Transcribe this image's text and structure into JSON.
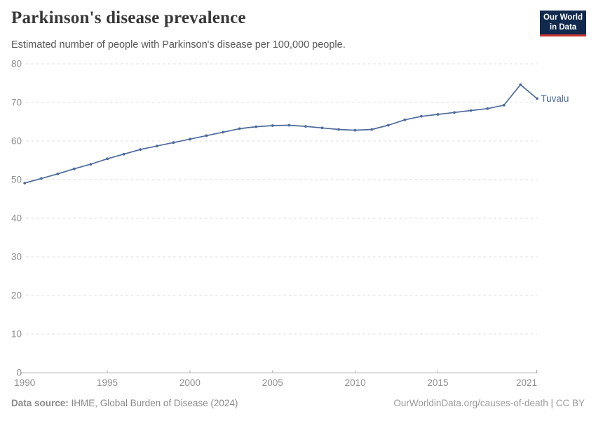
{
  "header": {
    "title": "Parkinson's disease prevalence",
    "subtitle": "Estimated number of people with Parkinson's disease per 100,000 people.",
    "logo": {
      "line1": "Our World",
      "line2": "in Data",
      "bg_color": "#10294C",
      "accent_color": "#C8352C"
    }
  },
  "chart_data": {
    "type": "line",
    "title": "Parkinson's disease prevalence",
    "subtitle": "Estimated number of people with Parkinson's disease per 100,000 people.",
    "x": [
      1990,
      1991,
      1992,
      1993,
      1994,
      1995,
      1996,
      1997,
      1998,
      1999,
      2000,
      2001,
      2002,
      2003,
      2004,
      2005,
      2006,
      2007,
      2008,
      2009,
      2010,
      2011,
      2012,
      2013,
      2014,
      2015,
      2016,
      2017,
      2018,
      2019,
      2020,
      2021
    ],
    "series": [
      {
        "name": "Tuvalu",
        "color": "#4C6A9C",
        "values": [
          49.1,
          50.3,
          51.5,
          52.8,
          54.0,
          55.4,
          56.6,
          57.8,
          58.7,
          59.6,
          60.5,
          61.4,
          62.3,
          63.2,
          63.7,
          64.0,
          64.1,
          63.8,
          63.4,
          63.0,
          62.8,
          63.0,
          64.1,
          65.5,
          66.4,
          66.9,
          67.4,
          67.9,
          68.4,
          69.3,
          74.6,
          71.0
        ]
      }
    ],
    "xlim": [
      1990,
      2021
    ],
    "ylim": [
      0,
      80
    ],
    "xticks": [
      1990,
      1995,
      2000,
      2005,
      2010,
      2015,
      2021
    ],
    "yticks": [
      0,
      10,
      20,
      30,
      40,
      50,
      60,
      70,
      80
    ],
    "grid": "horizontal-dashed",
    "legend_position": "end-of-line",
    "end_label": "Tuvalu"
  },
  "footer": {
    "source_label": "Data source:",
    "source_value": "IHME, Global Burden of Disease (2024)",
    "attribution": "OurWorldinData.org/causes-of-death | CC BY"
  },
  "colors": {
    "line": "#4C6A9C",
    "grid": "#DCDCDC",
    "axis": "#A3A3A3",
    "tick": "#B5B5B5",
    "tick_label": "#8E8E8E"
  }
}
